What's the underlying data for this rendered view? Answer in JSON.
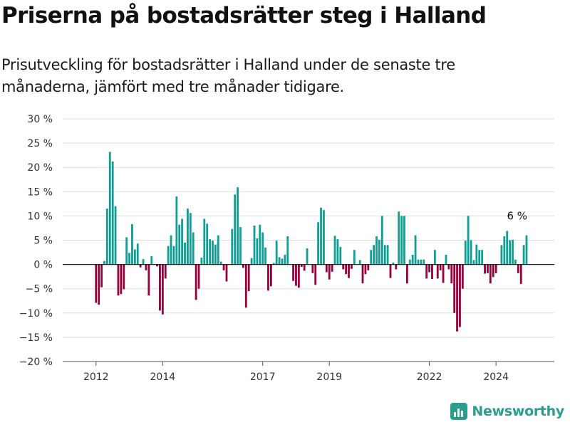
{
  "title": "Priserna på bostadsrätter steg i Halland",
  "subtitle": "Prisutveckling för bostadsrätter i Halland under de senaste tre månaderna, jämfört med tre månader tidigare.",
  "brand": "Newsworthy",
  "colors": {
    "positive": "#0f9e93",
    "negative": "#98003c",
    "grid": "#dddddd",
    "baseline": "#222222"
  },
  "chart_data": {
    "type": "bar",
    "ylim": [
      -20,
      30
    ],
    "xlim": [
      2011.0,
      2025.75
    ],
    "y_ticks": [
      -20,
      -15,
      -10,
      -5,
      0,
      5,
      10,
      15,
      20,
      25,
      30
    ],
    "y_tick_labels": [
      "−20 %",
      "−15 %",
      "−10 %",
      "−5 %",
      "0 %",
      "5 %",
      "10 %",
      "15 %",
      "20 %",
      "25 %",
      "30 %"
    ],
    "x_ticks": [
      2012,
      2014,
      2017,
      2019,
      2022,
      2024
    ],
    "x_tick_labels": [
      "2012",
      "2014",
      "2017",
      "2019",
      "2022",
      "2024"
    ],
    "start": [
      2012,
      1
    ],
    "values": [
      -7.9,
      -8.3,
      -4.7,
      0.7,
      11.5,
      23.2,
      21.2,
      12.0,
      -6.4,
      -6.1,
      -5.1,
      5.6,
      2.4,
      8.3,
      3.1,
      4.3,
      -0.6,
      1.1,
      -1.2,
      -6.4,
      1.7,
      0,
      -0.4,
      -9.5,
      -10.3,
      -2.9,
      3.8,
      6.0,
      3.8,
      14.0,
      8.2,
      9.4,
      4.5,
      11.5,
      10.6,
      6.6,
      -7.3,
      -5.0,
      1.4,
      9.4,
      8.4,
      5.2,
      4.9,
      4.1,
      6.0,
      0.6,
      -1.2,
      -3.5,
      0,
      7.3,
      14.4,
      15.9,
      7.7,
      -0.7,
      -8.9,
      -5.5,
      1.3,
      8.0,
      5.4,
      8.2,
      6.6,
      3.5,
      -5.4,
      -4.5,
      0.3,
      4.9,
      1.5,
      1.2,
      2.0,
      5.8,
      0,
      -3.4,
      -4.4,
      -4.8,
      -0.5,
      -1.3,
      3.3,
      0,
      -1.8,
      -4.2,
      8.7,
      11.7,
      11.2,
      -1.6,
      -3.1,
      -1.5,
      5.9,
      5.2,
      3.6,
      -1.0,
      -2.0,
      -2.8,
      -0.9,
      3.0,
      0,
      0.9,
      -3.9,
      -2.0,
      -1.2,
      3.0,
      4.0,
      5.8,
      5.1,
      10.0,
      4.0,
      4.0,
      -2.8,
      0.4,
      -1.0,
      10.9,
      10.0,
      10.0,
      -3.9,
      1.0,
      2.0,
      6.0,
      1.0,
      1.0,
      1.0,
      -2.9,
      -1.6,
      -3.0,
      3.0,
      -2.9,
      -1.2,
      -3.8,
      2.0,
      -1.0,
      -3.9,
      -10.0,
      -13.8,
      -12.9,
      -5.0,
      4.9,
      10.0,
      5.0,
      0.9,
      4.1,
      3.0,
      3.0,
      -1.9,
      -1.8,
      -3.9,
      -2.6,
      -1.8,
      0,
      4.0,
      5.8,
      6.9,
      5.0,
      5.1,
      1.0,
      -1.8,
      -4.0,
      4.0,
      6.0
    ],
    "annotations": [
      {
        "label": "6 %",
        "index": -1
      }
    ]
  }
}
